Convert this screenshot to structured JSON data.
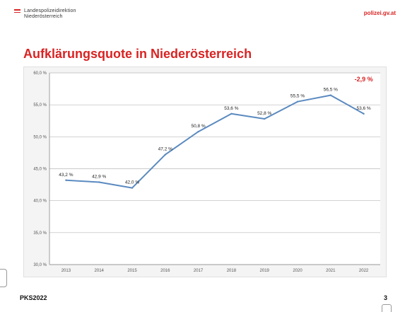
{
  "header": {
    "org_line1": "Landespolizeidirektion",
    "org_line2": "Niederösterreich",
    "site": "polizei.gv.at"
  },
  "slide": {
    "footer_left": "PKS2022",
    "page_number": "3"
  },
  "colors": {
    "accent": "#d92323",
    "line": "#5b8ac0"
  },
  "chart_data": {
    "type": "line",
    "title": "Aufklärungsquote in Niederösterreich",
    "x": [
      "2013",
      "2014",
      "2015",
      "2016",
      "2017",
      "2018",
      "2019",
      "2020",
      "2021",
      "2022"
    ],
    "series": [
      {
        "values": [
          43.2,
          42.9,
          42.0,
          47.2,
          50.8,
          53.6,
          52.8,
          55.5,
          56.5,
          53.6
        ]
      }
    ],
    "data_labels": [
      "43,2 %",
      "42,9 %",
      "42,0 %",
      "47,2 %",
      "50,8 %",
      "53,6 %",
      "52,8 %",
      "55,5 %",
      "56,5 %",
      "53,6 %"
    ],
    "ylim": [
      30,
      60
    ],
    "yticks": [
      30,
      35,
      40,
      45,
      50,
      55,
      60
    ],
    "ytick_labels": [
      "30,0 %",
      "35,0 %",
      "40,0 %",
      "45,0 %",
      "50,0 %",
      "55,0 %",
      "60,0 %"
    ],
    "grid": true,
    "annotation": "-2,9 %"
  }
}
